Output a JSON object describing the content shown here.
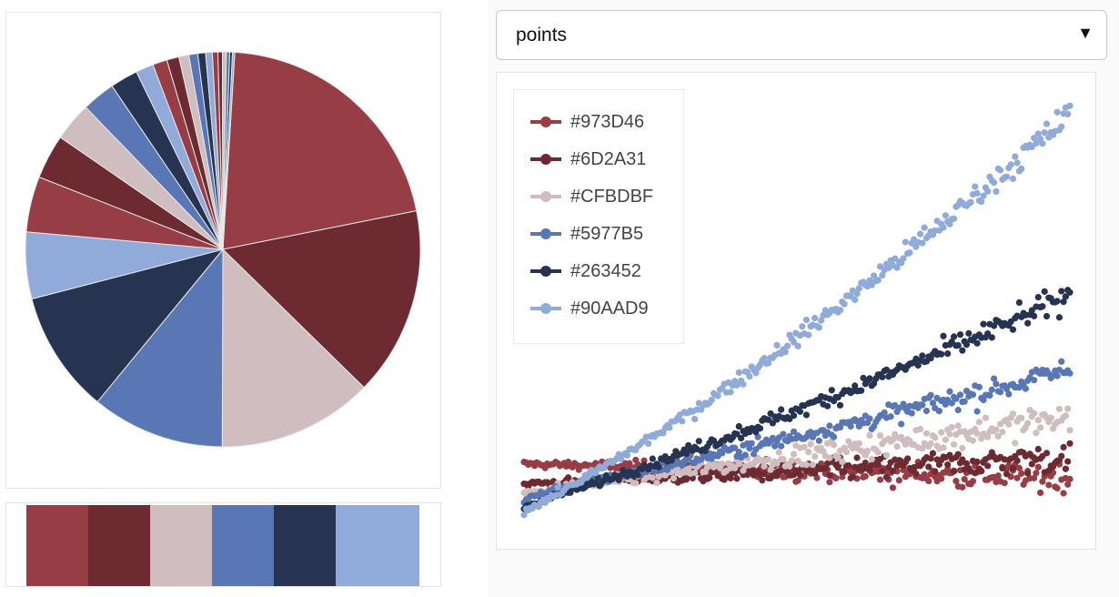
{
  "colors": [
    "#973D46",
    "#6D2A31",
    "#CFBDBF",
    "#5977B5",
    "#263452",
    "#90AAD9"
  ],
  "dropdown": {
    "selected": "points",
    "arrow_icon": "caret-down-icon"
  },
  "pie": {
    "slice_outline": "#e8e8e8"
  },
  "palette_strip": {
    "colors": [
      "#973D46",
      "#6D2A31",
      "#CFBDBF",
      "#5977B5",
      "#263452",
      "#90AAD9"
    ]
  },
  "chart_data": [
    {
      "type": "pie",
      "title": "",
      "values": [
        23,
        17,
        14,
        12,
        11,
        6,
        5,
        4,
        3.5,
        3,
        2.5,
        1.6,
        1.3,
        1.1,
        0.9,
        0.8,
        0.7,
        0.6,
        0.5,
        0.4,
        0.35,
        0.3,
        0.25,
        0.2
      ],
      "colors": [
        "#973D46",
        "#6D2A31",
        "#CFBDBF",
        "#5977B5",
        "#263452",
        "#90AAD9",
        "#973D46",
        "#6D2A31",
        "#CFBDBF",
        "#5977B5",
        "#263452",
        "#90AAD9",
        "#973D46",
        "#6D2A31",
        "#CFBDBF",
        "#5977B5",
        "#263452",
        "#90AAD9",
        "#973D46",
        "#6D2A31",
        "#CFBDBF",
        "#5977B5",
        "#263452",
        "#90AAD9"
      ]
    },
    {
      "type": "scatter",
      "title": "",
      "xlabel": "",
      "ylabel": "",
      "xlim": [
        0,
        100
      ],
      "ylim": [
        -5,
        125
      ],
      "grid": false,
      "legend_position": "top-left",
      "series": [
        {
          "name": "#973D46",
          "color": "#973D46",
          "start": 14,
          "end": 10,
          "shape": 1.0,
          "noise": 2.6
        },
        {
          "name": "#6D2A31",
          "color": "#6D2A31",
          "start": 8,
          "end": 16,
          "shape": 0.8,
          "noise": 2.6
        },
        {
          "name": "#CFBDBF",
          "color": "#CFBDBF",
          "start": 5,
          "end": 28,
          "shape": 0.7,
          "noise": 2.8
        },
        {
          "name": "#5977B5",
          "color": "#5977B5",
          "start": 3,
          "end": 42,
          "shape": 0.7,
          "noise": 2.2
        },
        {
          "name": "#263452",
          "color": "#263452",
          "start": 1,
          "end": 64,
          "shape": 0.85,
          "noise": 2.2
        },
        {
          "name": "#90AAD9",
          "color": "#90AAD9",
          "start": 0,
          "end": 118,
          "shape": 0.95,
          "noise": 2.4
        }
      ],
      "points_per_series": 260
    }
  ]
}
